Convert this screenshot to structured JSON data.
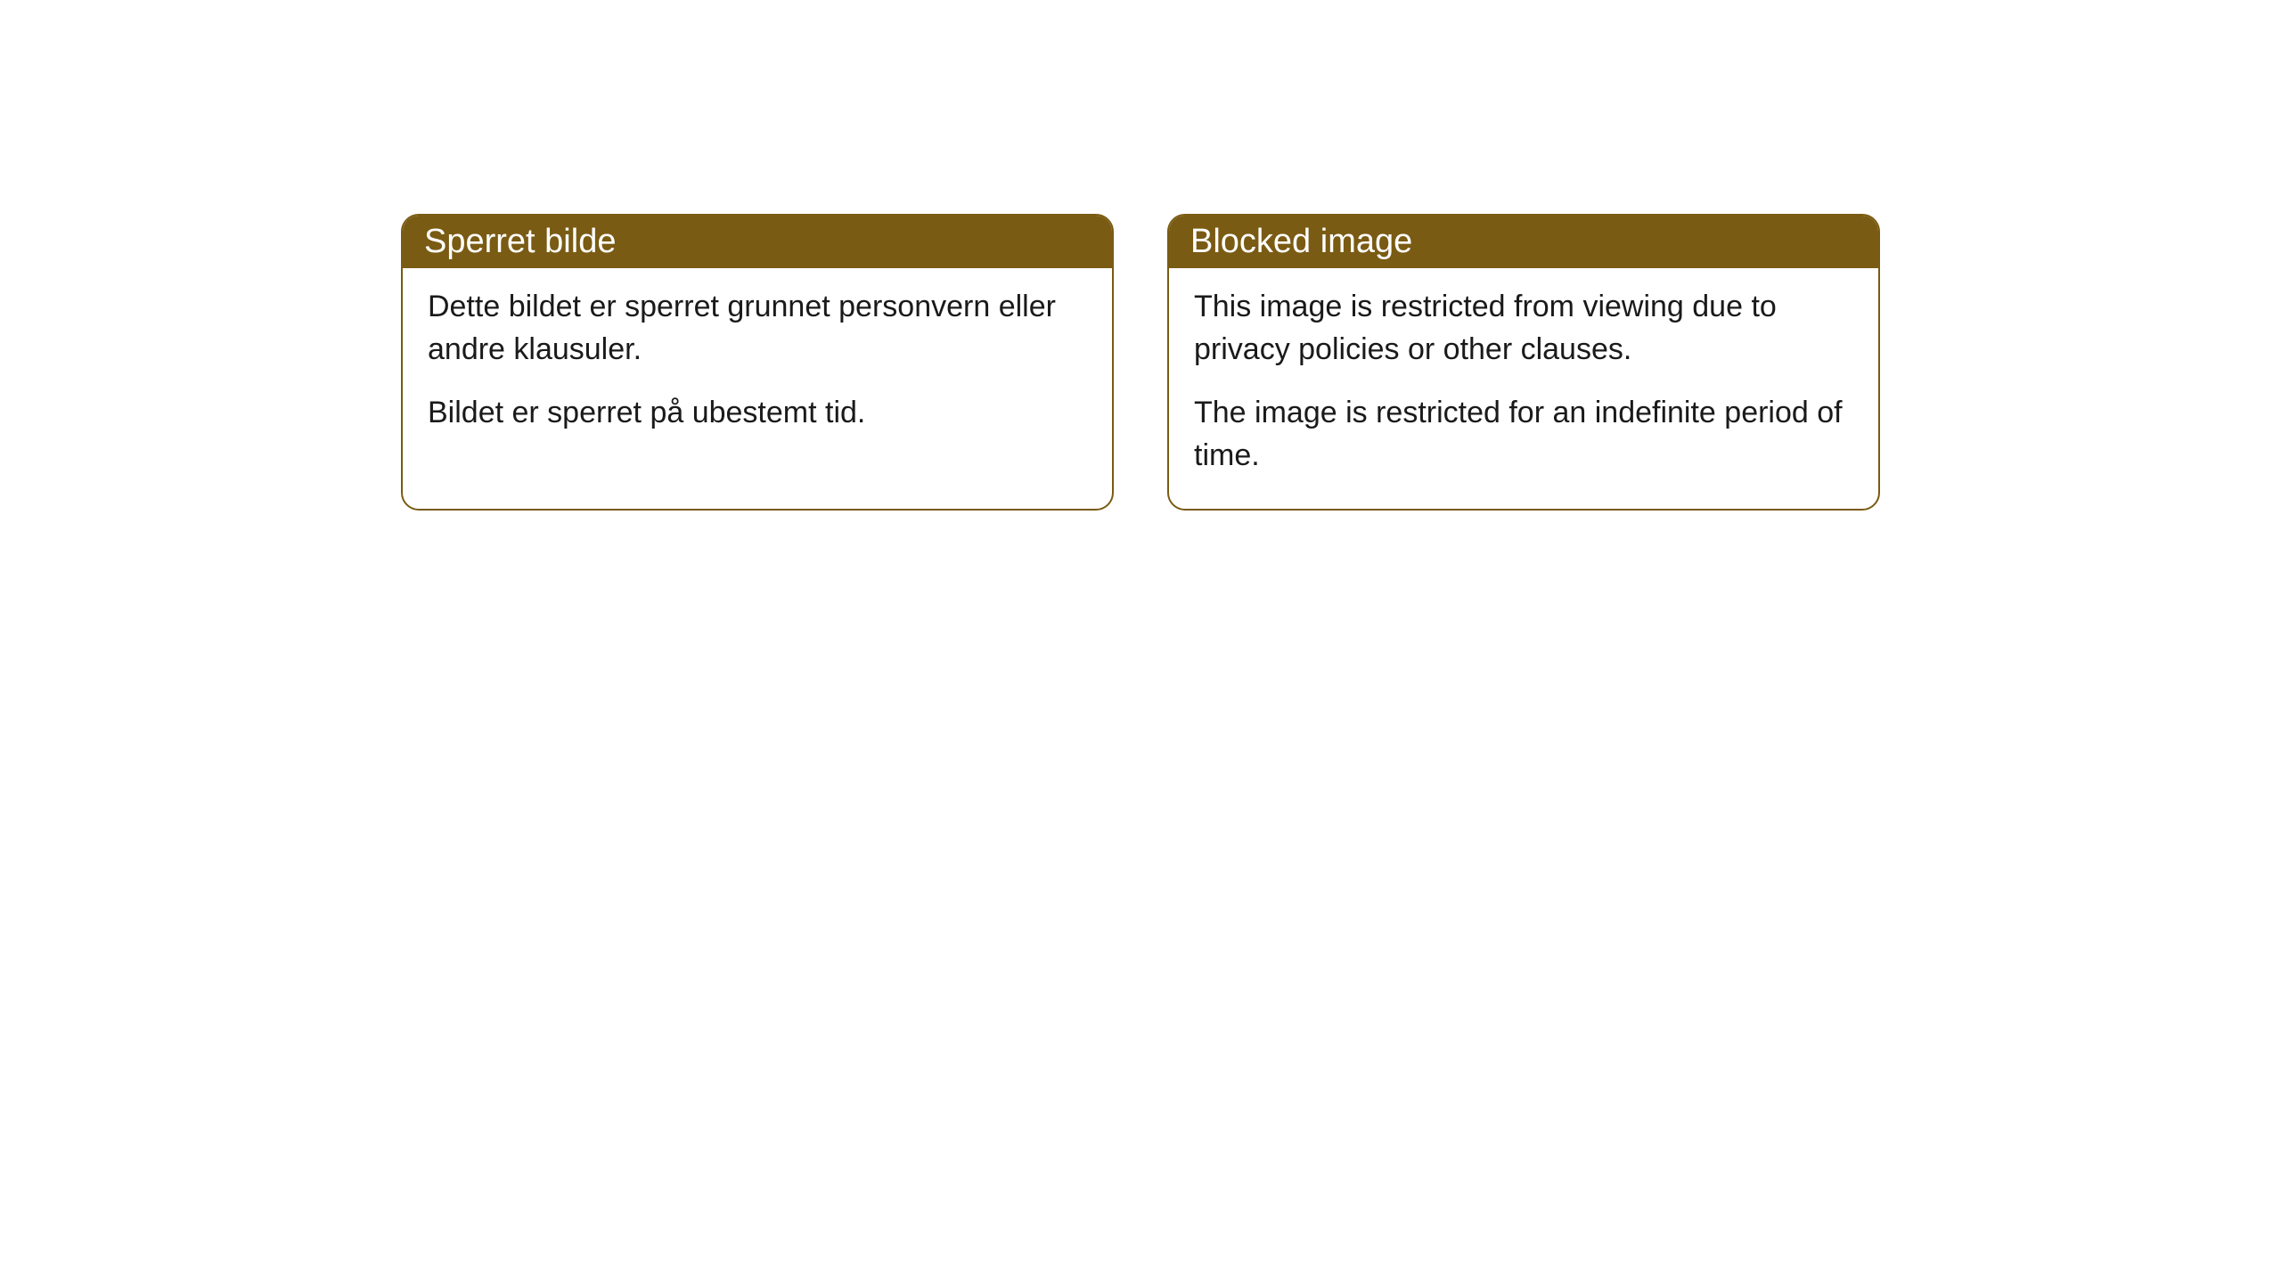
{
  "cards": [
    {
      "title": "Sperret bilde",
      "paragraph1": "Dette bildet er sperret grunnet personvern eller andre klausuler.",
      "paragraph2": "Bildet er sperret på ubestemt tid."
    },
    {
      "title": "Blocked image",
      "paragraph1": "This image is restricted from viewing due to privacy policies or other clauses.",
      "paragraph2": "The image is restricted for an indefinite period of time."
    }
  ],
  "styling": {
    "header_background_color": "#7a5b13",
    "header_text_color": "#ffffff",
    "border_color": "#7a5b13",
    "body_background_color": "#ffffff",
    "body_text_color": "#1a1a1a",
    "border_radius": 20,
    "header_font_size": 38,
    "body_font_size": 34
  }
}
